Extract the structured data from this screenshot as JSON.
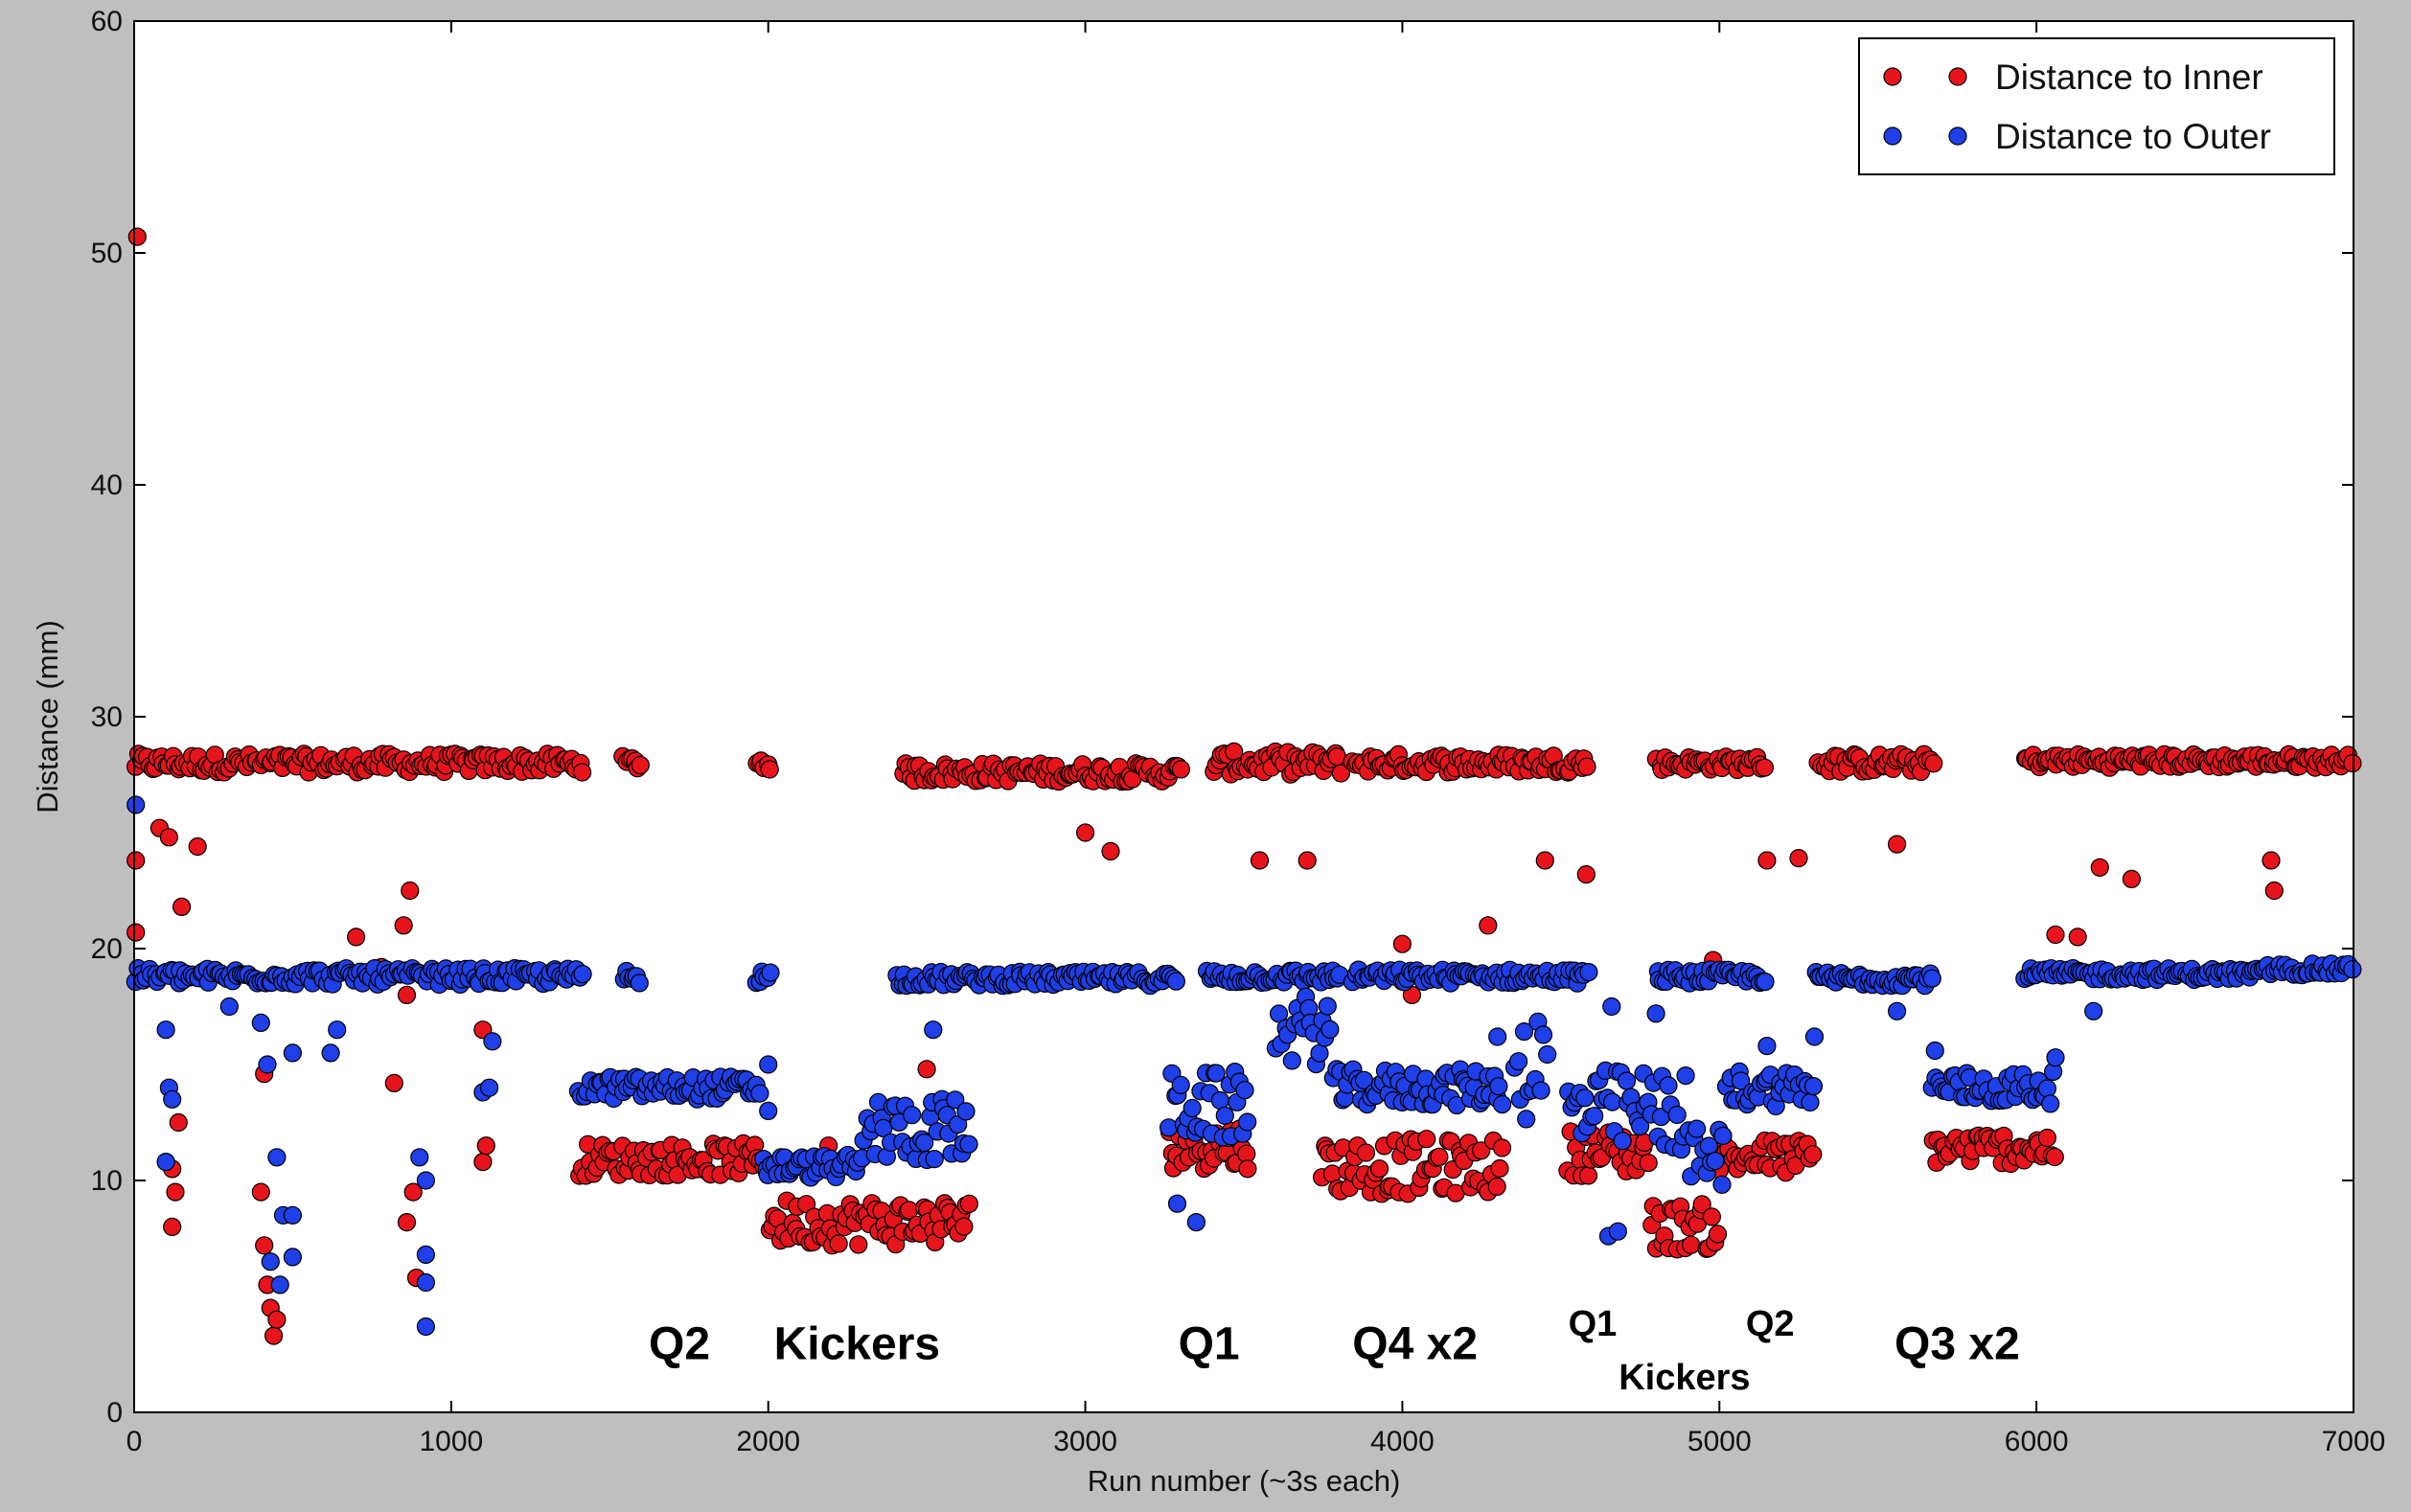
{
  "chart_data": {
    "type": "scatter",
    "title": "",
    "xlabel": "Run number (~3s each)",
    "ylabel": "Distance (mm)",
    "xlim": [
      0,
      7000
    ],
    "ylim": [
      0,
      60
    ],
    "xticks": [
      "0",
      "1000",
      "2000",
      "3000",
      "4000",
      "5000",
      "6000",
      "7000"
    ],
    "yticks": [
      "0",
      "10",
      "20",
      "30",
      "40",
      "50",
      "60"
    ],
    "grid": false,
    "legend_position": "top-right",
    "colors": {
      "plot_background": "#ffffff",
      "figure_background": "#bfbfbf"
    },
    "series": [
      {
        "name": "Distance to Inner",
        "color": "#e8141c",
        "segments": [
          {
            "x0": 0,
            "x1": 1420,
            "base": 28.0,
            "spread": 0.4
          },
          {
            "x0": 1540,
            "x1": 1600,
            "base": 28.0,
            "spread": 0.3
          },
          {
            "x0": 1960,
            "x1": 2010,
            "base": 28.0,
            "spread": 0.3
          },
          {
            "x0": 2420,
            "x1": 3310,
            "base": 27.6,
            "spread": 0.4
          },
          {
            "x0": 3400,
            "x1": 3810,
            "base": 28.0,
            "spread": 0.5
          },
          {
            "x0": 3840,
            "x1": 4290,
            "base": 28.0,
            "spread": 0.4
          },
          {
            "x0": 4290,
            "x1": 4590,
            "base": 28.0,
            "spread": 0.4
          },
          {
            "x0": 4800,
            "x1": 5150,
            "base": 28.0,
            "spread": 0.3
          },
          {
            "x0": 5310,
            "x1": 5680,
            "base": 28.0,
            "spread": 0.4
          },
          {
            "x0": 5960,
            "x1": 7000,
            "base": 28.1,
            "spread": 0.3
          },
          {
            "x0": 1400,
            "x1": 2000,
            "base": 10.9,
            "spread": 0.7
          },
          {
            "x0": 2000,
            "x1": 2640,
            "base": 8.2,
            "spread": 1.0
          },
          {
            "x0": 3260,
            "x1": 3520,
            "base": 11.5,
            "spread": 1.0
          },
          {
            "x0": 3740,
            "x1": 4320,
            "base": 10.6,
            "spread": 1.2
          },
          {
            "x0": 4520,
            "x1": 4780,
            "base": 11.2,
            "spread": 1.0
          },
          {
            "x0": 4780,
            "x1": 5000,
            "base": 8.0,
            "spread": 1.0
          },
          {
            "x0": 5000,
            "x1": 5300,
            "base": 11.0,
            "spread": 0.8
          },
          {
            "x0": 5670,
            "x1": 6060,
            "base": 11.4,
            "spread": 0.7
          }
        ],
        "points": [
          [
            10,
            50.7
          ],
          [
            5,
            20.7
          ],
          [
            5,
            23.8
          ],
          [
            80,
            25.2
          ],
          [
            110,
            24.8
          ],
          [
            150,
            21.8
          ],
          [
            200,
            24.4
          ],
          [
            120,
            10.5
          ],
          [
            130,
            9.5
          ],
          [
            120,
            8.0
          ],
          [
            140,
            12.5
          ],
          [
            410,
            7.2
          ],
          [
            420,
            5.5
          ],
          [
            430,
            4.5
          ],
          [
            440,
            3.3
          ],
          [
            450,
            4.0
          ],
          [
            400,
            9.5
          ],
          [
            410,
            14.6
          ],
          [
            700,
            20.5
          ],
          [
            780,
            19.2
          ],
          [
            820,
            14.2
          ],
          [
            880,
            9.5
          ],
          [
            860,
            8.2
          ],
          [
            890,
            5.8
          ],
          [
            860,
            18.0
          ],
          [
            850,
            21.0
          ],
          [
            870,
            22.5
          ],
          [
            1100,
            10.8
          ],
          [
            1110,
            11.5
          ],
          [
            1100,
            16.5
          ],
          [
            4000,
            20.2
          ],
          [
            4270,
            21.0
          ],
          [
            4030,
            18.0
          ],
          [
            3700,
            23.8
          ],
          [
            3550,
            23.8
          ],
          [
            4450,
            23.8
          ],
          [
            4580,
            23.2
          ],
          [
            4980,
            19.5
          ],
          [
            5150,
            23.8
          ],
          [
            6130,
            20.5
          ],
          [
            6740,
            23.8
          ],
          [
            6750,
            22.5
          ],
          [
            6060,
            20.6
          ],
          [
            2500,
            14.8
          ],
          [
            3000,
            25.0
          ],
          [
            3080,
            24.2
          ],
          [
            5250,
            23.9
          ],
          [
            5560,
            24.5
          ],
          [
            6200,
            23.5
          ],
          [
            6300,
            23.0
          ],
          [
            2190,
            11.5
          ]
        ]
      },
      {
        "name": "Distance to Outer",
        "color": "#1f3fe8",
        "segments": [
          {
            "x0": 0,
            "x1": 1420,
            "base": 18.8,
            "spread": 0.35
          },
          {
            "x0": 1540,
            "x1": 1600,
            "base": 18.8,
            "spread": 0.3
          },
          {
            "x0": 1960,
            "x1": 2010,
            "base": 18.8,
            "spread": 0.3
          },
          {
            "x0": 2400,
            "x1": 3290,
            "base": 18.7,
            "spread": 0.3
          },
          {
            "x0": 3380,
            "x1": 3810,
            "base": 18.8,
            "spread": 0.3
          },
          {
            "x0": 3840,
            "x1": 4590,
            "base": 18.8,
            "spread": 0.3
          },
          {
            "x0": 4800,
            "x1": 5150,
            "base": 18.8,
            "spread": 0.3
          },
          {
            "x0": 5300,
            "x1": 5680,
            "base": 18.7,
            "spread": 0.3
          },
          {
            "x0": 5960,
            "x1": 6720,
            "base": 18.9,
            "spread": 0.25
          },
          {
            "x0": 6720,
            "x1": 7000,
            "base": 19.1,
            "spread": 0.25
          },
          {
            "x0": 1400,
            "x1": 1980,
            "base": 14.0,
            "spread": 0.5
          },
          {
            "x0": 1980,
            "x1": 2300,
            "base": 10.6,
            "spread": 0.5
          },
          {
            "x0": 2300,
            "x1": 2640,
            "base": 12.2,
            "spread": 1.4
          },
          {
            "x0": 3260,
            "x1": 3520,
            "base": 13.2,
            "spread": 1.5
          },
          {
            "x0": 3600,
            "x1": 3780,
            "base": 16.5,
            "spread": 1.5
          },
          {
            "x0": 3780,
            "x1": 4320,
            "base": 14.0,
            "spread": 0.8
          },
          {
            "x0": 4350,
            "x1": 4460,
            "base": 15.0,
            "spread": 2.5
          },
          {
            "x0": 4520,
            "x1": 4900,
            "base": 13.0,
            "spread": 1.8
          },
          {
            "x0": 4900,
            "x1": 5020,
            "base": 11.0,
            "spread": 1.3
          },
          {
            "x0": 5020,
            "x1": 5300,
            "base": 14.0,
            "spread": 0.8
          },
          {
            "x0": 5670,
            "x1": 6060,
            "base": 14.0,
            "spread": 0.7
          }
        ],
        "points": [
          [
            5,
            26.2
          ],
          [
            100,
            16.5
          ],
          [
            110,
            14.0
          ],
          [
            100,
            10.8
          ],
          [
            120,
            13.5
          ],
          [
            300,
            17.5
          ],
          [
            400,
            16.8
          ],
          [
            420,
            15.0
          ],
          [
            450,
            11.0
          ],
          [
            470,
            8.5
          ],
          [
            430,
            6.5
          ],
          [
            460,
            5.5
          ],
          [
            500,
            15.5
          ],
          [
            500,
            8.5
          ],
          [
            500,
            6.7
          ],
          [
            620,
            15.5
          ],
          [
            640,
            16.5
          ],
          [
            900,
            11.0
          ],
          [
            920,
            10.0
          ],
          [
            920,
            6.8
          ],
          [
            920,
            5.6
          ],
          [
            920,
            3.7
          ],
          [
            1100,
            13.8
          ],
          [
            1120,
            14.0
          ],
          [
            1130,
            16.0
          ],
          [
            2000,
            13.0
          ],
          [
            2000,
            15.0
          ],
          [
            2520,
            16.5
          ],
          [
            3290,
            9.0
          ],
          [
            3350,
            8.2
          ],
          [
            4650,
            7.6
          ],
          [
            4680,
            7.8
          ],
          [
            4800,
            17.2
          ],
          [
            4660,
            17.5
          ],
          [
            5150,
            15.8
          ],
          [
            5300,
            16.2
          ],
          [
            5560,
            17.3
          ],
          [
            5680,
            15.6
          ],
          [
            6060,
            15.3
          ],
          [
            6180,
            17.3
          ],
          [
            4300,
            16.2
          ]
        ]
      }
    ],
    "annotations": [
      {
        "text": "Q2",
        "x": 1720,
        "y": 2.3,
        "size": 48
      },
      {
        "text": "Kickers",
        "x": 2280,
        "y": 2.3,
        "size": 48
      },
      {
        "text": "Q1",
        "x": 3390,
        "y": 2.3,
        "size": 48
      },
      {
        "text": "Q4 x2",
        "x": 4040,
        "y": 2.3,
        "size": 48
      },
      {
        "text": "Q1",
        "x": 4600,
        "y": 3.3,
        "size": 38
      },
      {
        "text": "Q2",
        "x": 5160,
        "y": 3.3,
        "size": 38
      },
      {
        "text": "Kickers",
        "x": 4890,
        "y": 1.0,
        "size": 38
      },
      {
        "text": "Q3 x2",
        "x": 5750,
        "y": 2.3,
        "size": 48
      }
    ]
  }
}
